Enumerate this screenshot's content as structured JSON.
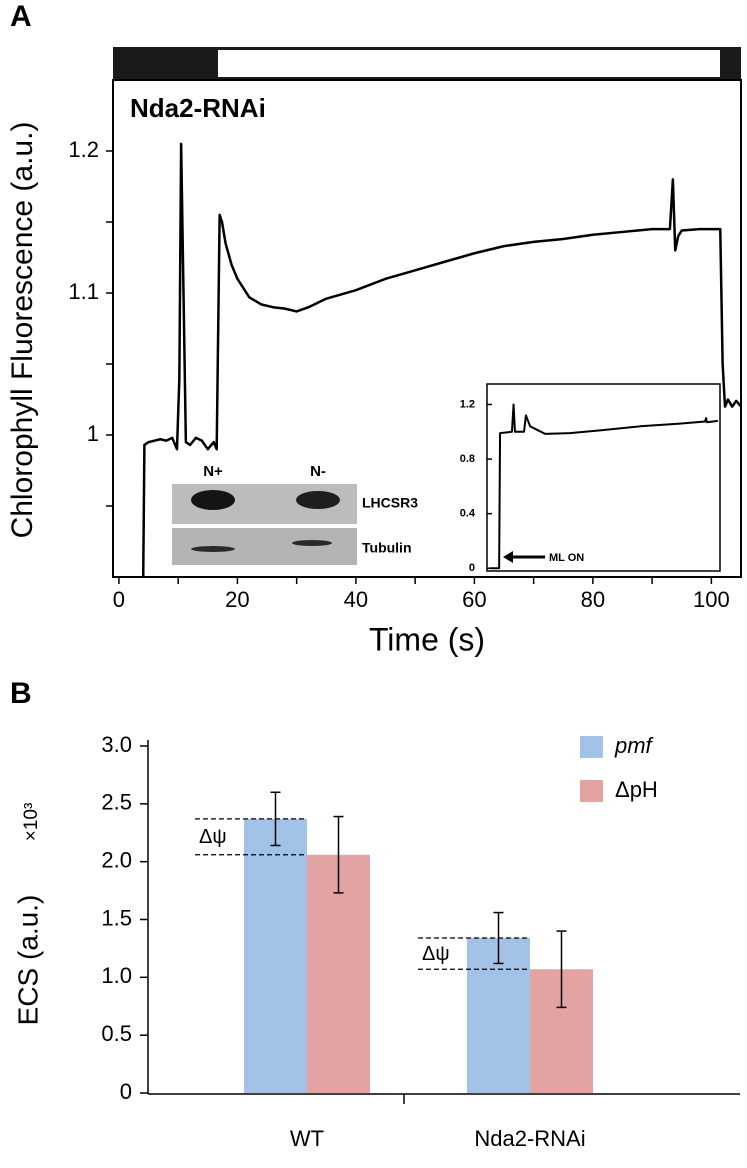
{
  "chart_data": [
    {
      "type": "line",
      "panel": "A",
      "annotation": "Nda2-RNAi",
      "x_label": "Time (s)",
      "y_label": "Chlorophyll Fluorescence (a.u.)",
      "xlim": [
        -1,
        105
      ],
      "ylim": [
        0.9,
        1.25
      ],
      "xticks": [
        0,
        20,
        40,
        60,
        80,
        100
      ],
      "xminorticks": [
        10,
        30,
        50,
        70,
        90
      ],
      "yticks": [
        1,
        1.1,
        1.2
      ],
      "yminorticks": [
        0.95,
        1.05,
        1.15
      ],
      "color": "#000000",
      "x": [
        4.1,
        4.3,
        5,
        6,
        7,
        8,
        9,
        9.8,
        10.2,
        10.5,
        10.9,
        11.3,
        12,
        13,
        14,
        15,
        16,
        16.5,
        17,
        17.4,
        18,
        19,
        20,
        22,
        24,
        26,
        28,
        30,
        32,
        35,
        40,
        45,
        50,
        55,
        60,
        65,
        70,
        75,
        80,
        85,
        90,
        93,
        93.5,
        93.9,
        94.4,
        95,
        98,
        101.5,
        101.9,
        102.3,
        102.8,
        103.5,
        104.2,
        105
      ],
      "values": [
        0.9,
        0.993,
        0.995,
        0.996,
        0.997,
        0.996,
        0.998,
        0.99,
        1.04,
        1.205,
        1.1,
        0.995,
        0.993,
        0.998,
        0.996,
        0.99,
        0.995,
        0.99,
        1.155,
        1.15,
        1.135,
        1.12,
        1.11,
        1.097,
        1.092,
        1.09,
        1.089,
        1.087,
        1.09,
        1.096,
        1.102,
        1.11,
        1.116,
        1.122,
        1.128,
        1.133,
        1.136,
        1.138,
        1.141,
        1.143,
        1.145,
        1.145,
        1.18,
        1.13,
        1.14,
        1.144,
        1.145,
        1.145,
        1.05,
        1.02,
        1.025,
        1.02,
        1.024,
        1.02
      ],
      "blot_lanes": [
        "N+",
        "N-"
      ],
      "blot_rows": [
        "LHCSR3",
        "Tubulin"
      ]
    },
    {
      "type": "line",
      "inset": true,
      "annotation": "ML ON",
      "xlim": [
        0,
        100
      ],
      "ylim": [
        -0.02,
        1.35
      ],
      "yticks": [
        0,
        0.4,
        0.8,
        1.2
      ],
      "color": "#000000",
      "x": [
        1.3,
        5.2,
        5.6,
        10.7,
        11.4,
        12,
        15.9,
        16.7,
        18.5,
        24.9,
        35.6,
        48.5,
        65.7,
        82.8,
        93.6,
        94,
        94.4,
        99.1
      ],
      "values": [
        0,
        0,
        0.99,
        1.0,
        1.2,
        1.0,
        1.0,
        1.12,
        1.04,
        0.985,
        0.99,
        1.01,
        1.04,
        1.06,
        1.075,
        1.1,
        1.07,
        1.08
      ]
    },
    {
      "type": "bar",
      "panel": "B",
      "y_label": "ECS (a.u.)",
      "y_unit": "×10³",
      "categories": [
        "WT",
        "Nda2-RNAi"
      ],
      "ylim": [
        0,
        3
      ],
      "yticks": [
        0,
        0.5,
        {
          "value": 1,
          "label": "1.0"
        },
        1.5,
        {
          "value": 2,
          "label": "2.0"
        },
        2.5,
        {
          "value": 3,
          "label": "3.0"
        }
      ],
      "series": [
        {
          "name": "pmf",
          "color": "#a3c2e8",
          "values": [
            2.37,
            1.34
          ],
          "errors": [
            0.23,
            0.22
          ]
        },
        {
          "name": "ΔpH",
          "color": "#e3a3a3",
          "values": [
            2.06,
            1.07
          ],
          "errors": [
            0.33,
            0.33
          ]
        }
      ],
      "annotations": [
        "Δψ",
        "Δψ"
      ],
      "legend": "upper right"
    }
  ]
}
